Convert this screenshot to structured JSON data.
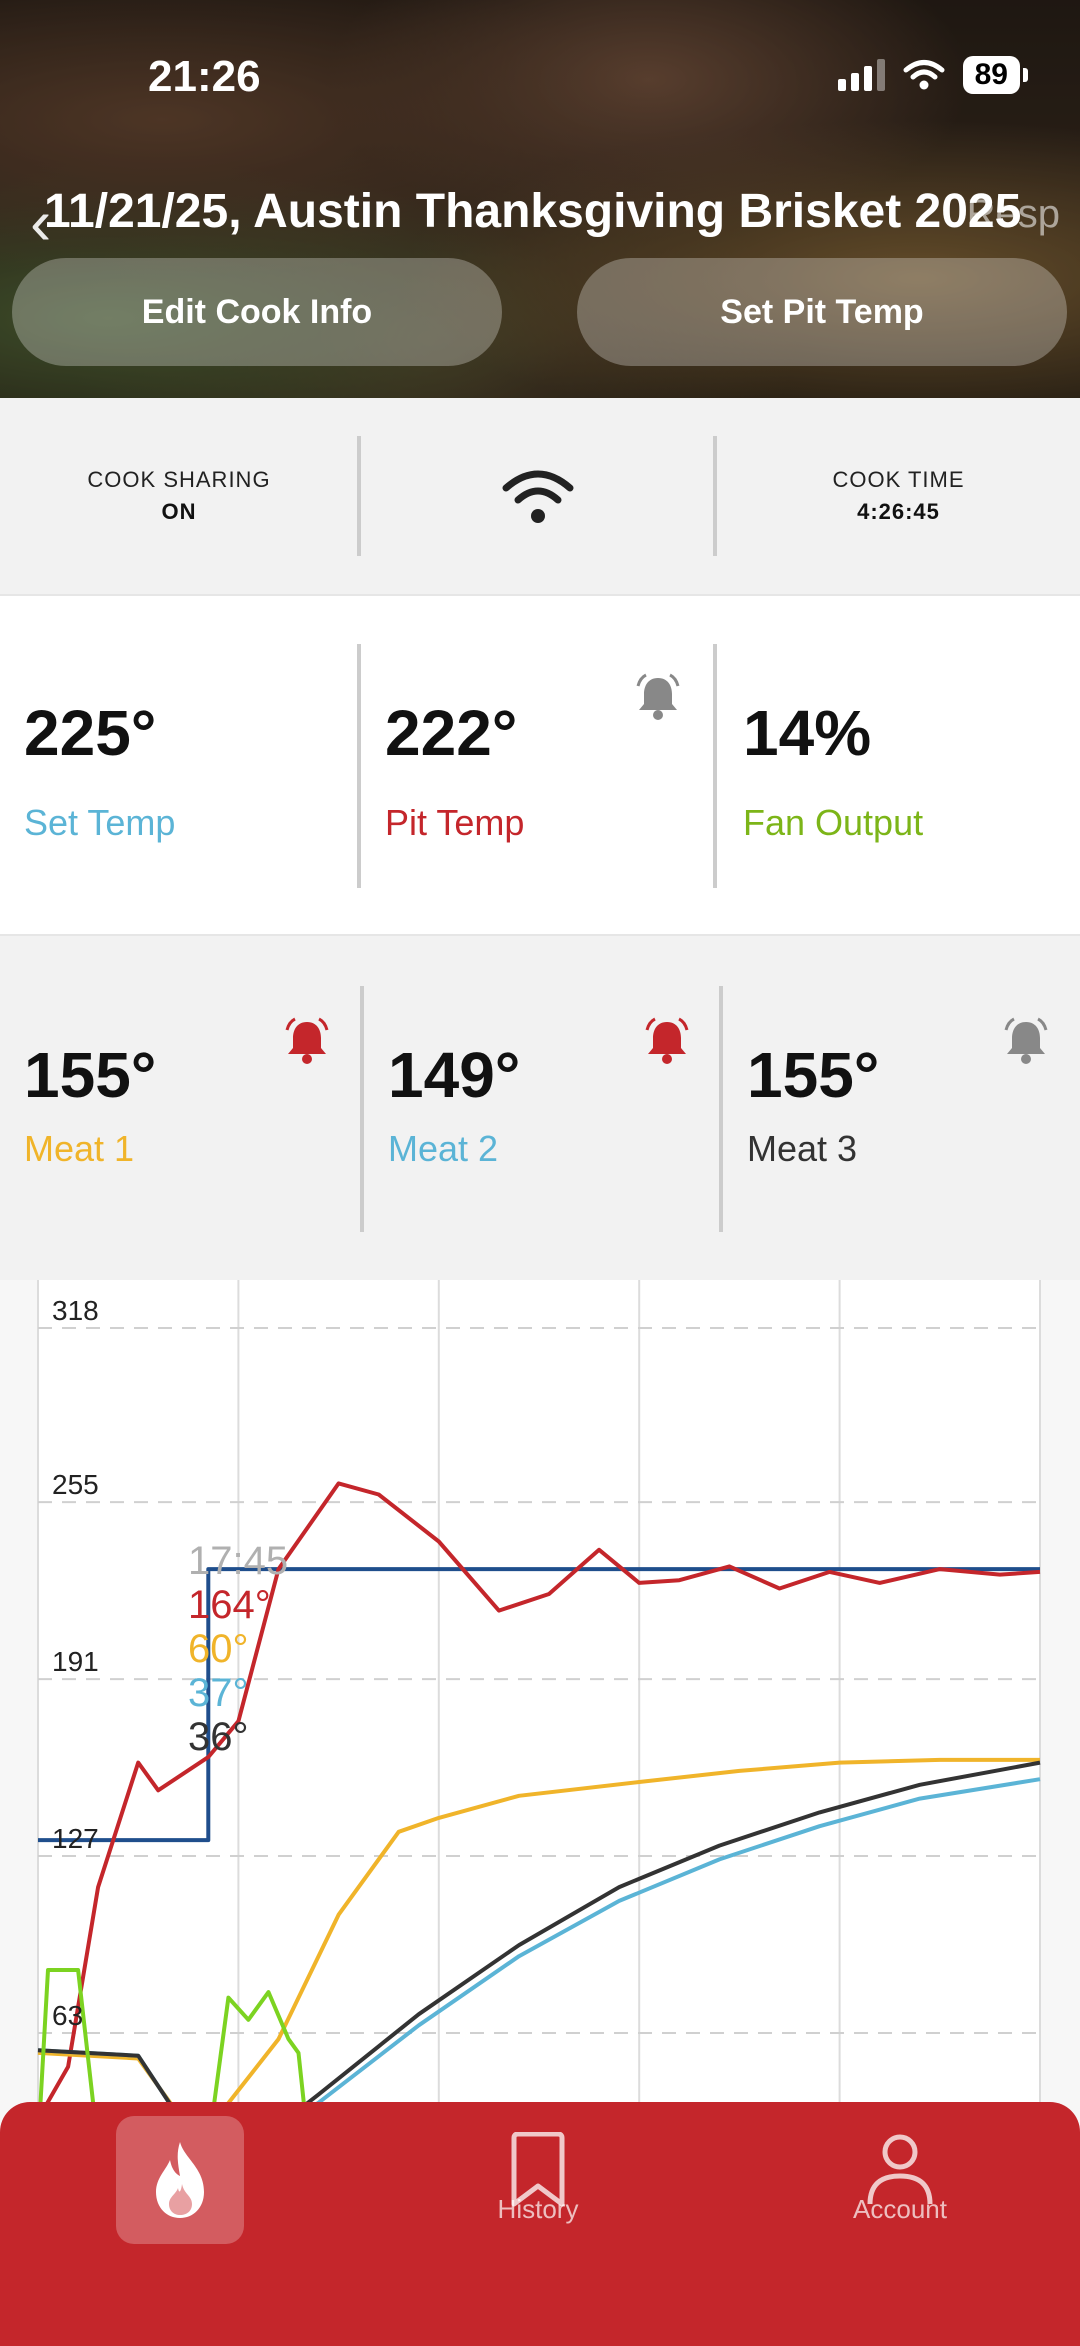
{
  "status_bar": {
    "time": "21:26",
    "battery": "89"
  },
  "header": {
    "title": "11/21/25, Austin Thanksgiving Brisket 2025",
    "clipped_right_text": "Resp",
    "edit_button": "Edit Cook Info",
    "pit_button": "Set Pit Temp"
  },
  "status": {
    "sharing_label": "COOK SHARING",
    "sharing_value": "ON",
    "wifi_icon": "wifi-icon",
    "cook_time_label": "COOK TIME",
    "cook_time_value": "4:26:45"
  },
  "temps": {
    "set_temp": {
      "value": "225°",
      "label": "Set Temp",
      "color": "#5bb4d6"
    },
    "pit_temp": {
      "value": "222°",
      "label": "Pit Temp",
      "color": "#c4262b"
    },
    "fan_output": {
      "value": "14%",
      "label": "Fan Output",
      "color": "#7cb518"
    }
  },
  "meats": [
    {
      "value": "155°",
      "label": "Meat 1",
      "color": "#f0b42a",
      "bell_color": "#c4262b"
    },
    {
      "value": "149°",
      "label": "Meat 2",
      "color": "#5bb4d6",
      "bell_color": "#c4262b"
    },
    {
      "value": "155°",
      "label": "Meat 3",
      "color": "#333333",
      "bell_color": "#888888"
    }
  ],
  "chart_data": {
    "type": "line",
    "y_ticks": [
      "318",
      "255",
      "191",
      "127",
      "63"
    ],
    "ylim": [
      15,
      318
    ],
    "x_range": [
      0,
      5
    ],
    "grid": "on",
    "tooltip": {
      "time": "17:45",
      "values": [
        {
          "text": "164°",
          "color": "#c4262b"
        },
        {
          "text": "60°",
          "color": "#f0b42a"
        },
        {
          "text": "37°",
          "color": "#5bb4d6"
        },
        {
          "text": "36°",
          "color": "#333333"
        }
      ]
    },
    "series": [
      {
        "color": "#1f4e8c",
        "points": [
          [
            0,
            127
          ],
          [
            0.85,
            127
          ],
          [
            0.85,
            225
          ],
          [
            5,
            225
          ]
        ]
      },
      {
        "color": "#c4262b",
        "points": [
          [
            0,
            26
          ],
          [
            0.15,
            45
          ],
          [
            0.3,
            110
          ],
          [
            0.5,
            155
          ],
          [
            0.6,
            145
          ],
          [
            0.85,
            157
          ],
          [
            1,
            170
          ],
          [
            1.2,
            225
          ],
          [
            1.5,
            256
          ],
          [
            1.7,
            252
          ],
          [
            2,
            235
          ],
          [
            2.3,
            210
          ],
          [
            2.55,
            216
          ],
          [
            2.8,
            232
          ],
          [
            3.0,
            220
          ],
          [
            3.2,
            221
          ],
          [
            3.45,
            226
          ],
          [
            3.7,
            218
          ],
          [
            3.95,
            224
          ],
          [
            4.2,
            220
          ],
          [
            4.5,
            225
          ],
          [
            4.8,
            223
          ],
          [
            5,
            224
          ]
        ]
      },
      {
        "color": "#f0b42a",
        "points": [
          [
            0,
            50
          ],
          [
            0.5,
            48
          ],
          [
            0.8,
            18
          ],
          [
            1.2,
            55
          ],
          [
            1.5,
            100
          ],
          [
            1.8,
            130
          ],
          [
            2,
            135
          ],
          [
            2.4,
            143
          ],
          [
            3,
            148
          ],
          [
            3.5,
            152
          ],
          [
            4,
            155
          ],
          [
            4.5,
            156
          ],
          [
            5,
            156
          ]
        ]
      },
      {
        "color": "#5bb4d6",
        "points": [
          [
            0,
            51
          ],
          [
            0.5,
            49
          ],
          [
            0.8,
            16
          ],
          [
            1.1,
            18
          ],
          [
            1.4,
            32
          ],
          [
            1.9,
            60
          ],
          [
            2.4,
            85
          ],
          [
            2.9,
            105
          ],
          [
            3.4,
            120
          ],
          [
            3.9,
            132
          ],
          [
            4.4,
            142
          ],
          [
            5,
            149
          ]
        ]
      },
      {
        "color": "#333333",
        "points": [
          [
            0,
            51
          ],
          [
            0.5,
            49
          ],
          [
            0.8,
            16
          ],
          [
            1.1,
            18
          ],
          [
            1.4,
            35
          ],
          [
            1.9,
            64
          ],
          [
            2.4,
            89
          ],
          [
            2.9,
            110
          ],
          [
            3.4,
            125
          ],
          [
            3.9,
            137
          ],
          [
            4.4,
            147
          ],
          [
            5,
            155
          ]
        ]
      },
      {
        "color": "#7cd321",
        "points": [
          [
            0,
            16
          ],
          [
            0.05,
            80
          ],
          [
            0.2,
            80
          ],
          [
            0.3,
            16
          ],
          [
            0.85,
            16
          ],
          [
            0.95,
            70
          ],
          [
            1.05,
            62
          ],
          [
            1.15,
            72
          ],
          [
            1.25,
            55
          ],
          [
            1.3,
            50
          ],
          [
            1.35,
            16
          ],
          [
            1.45,
            16
          ]
        ]
      }
    ]
  },
  "nav": {
    "history_label": "History",
    "account_label": "Account"
  }
}
